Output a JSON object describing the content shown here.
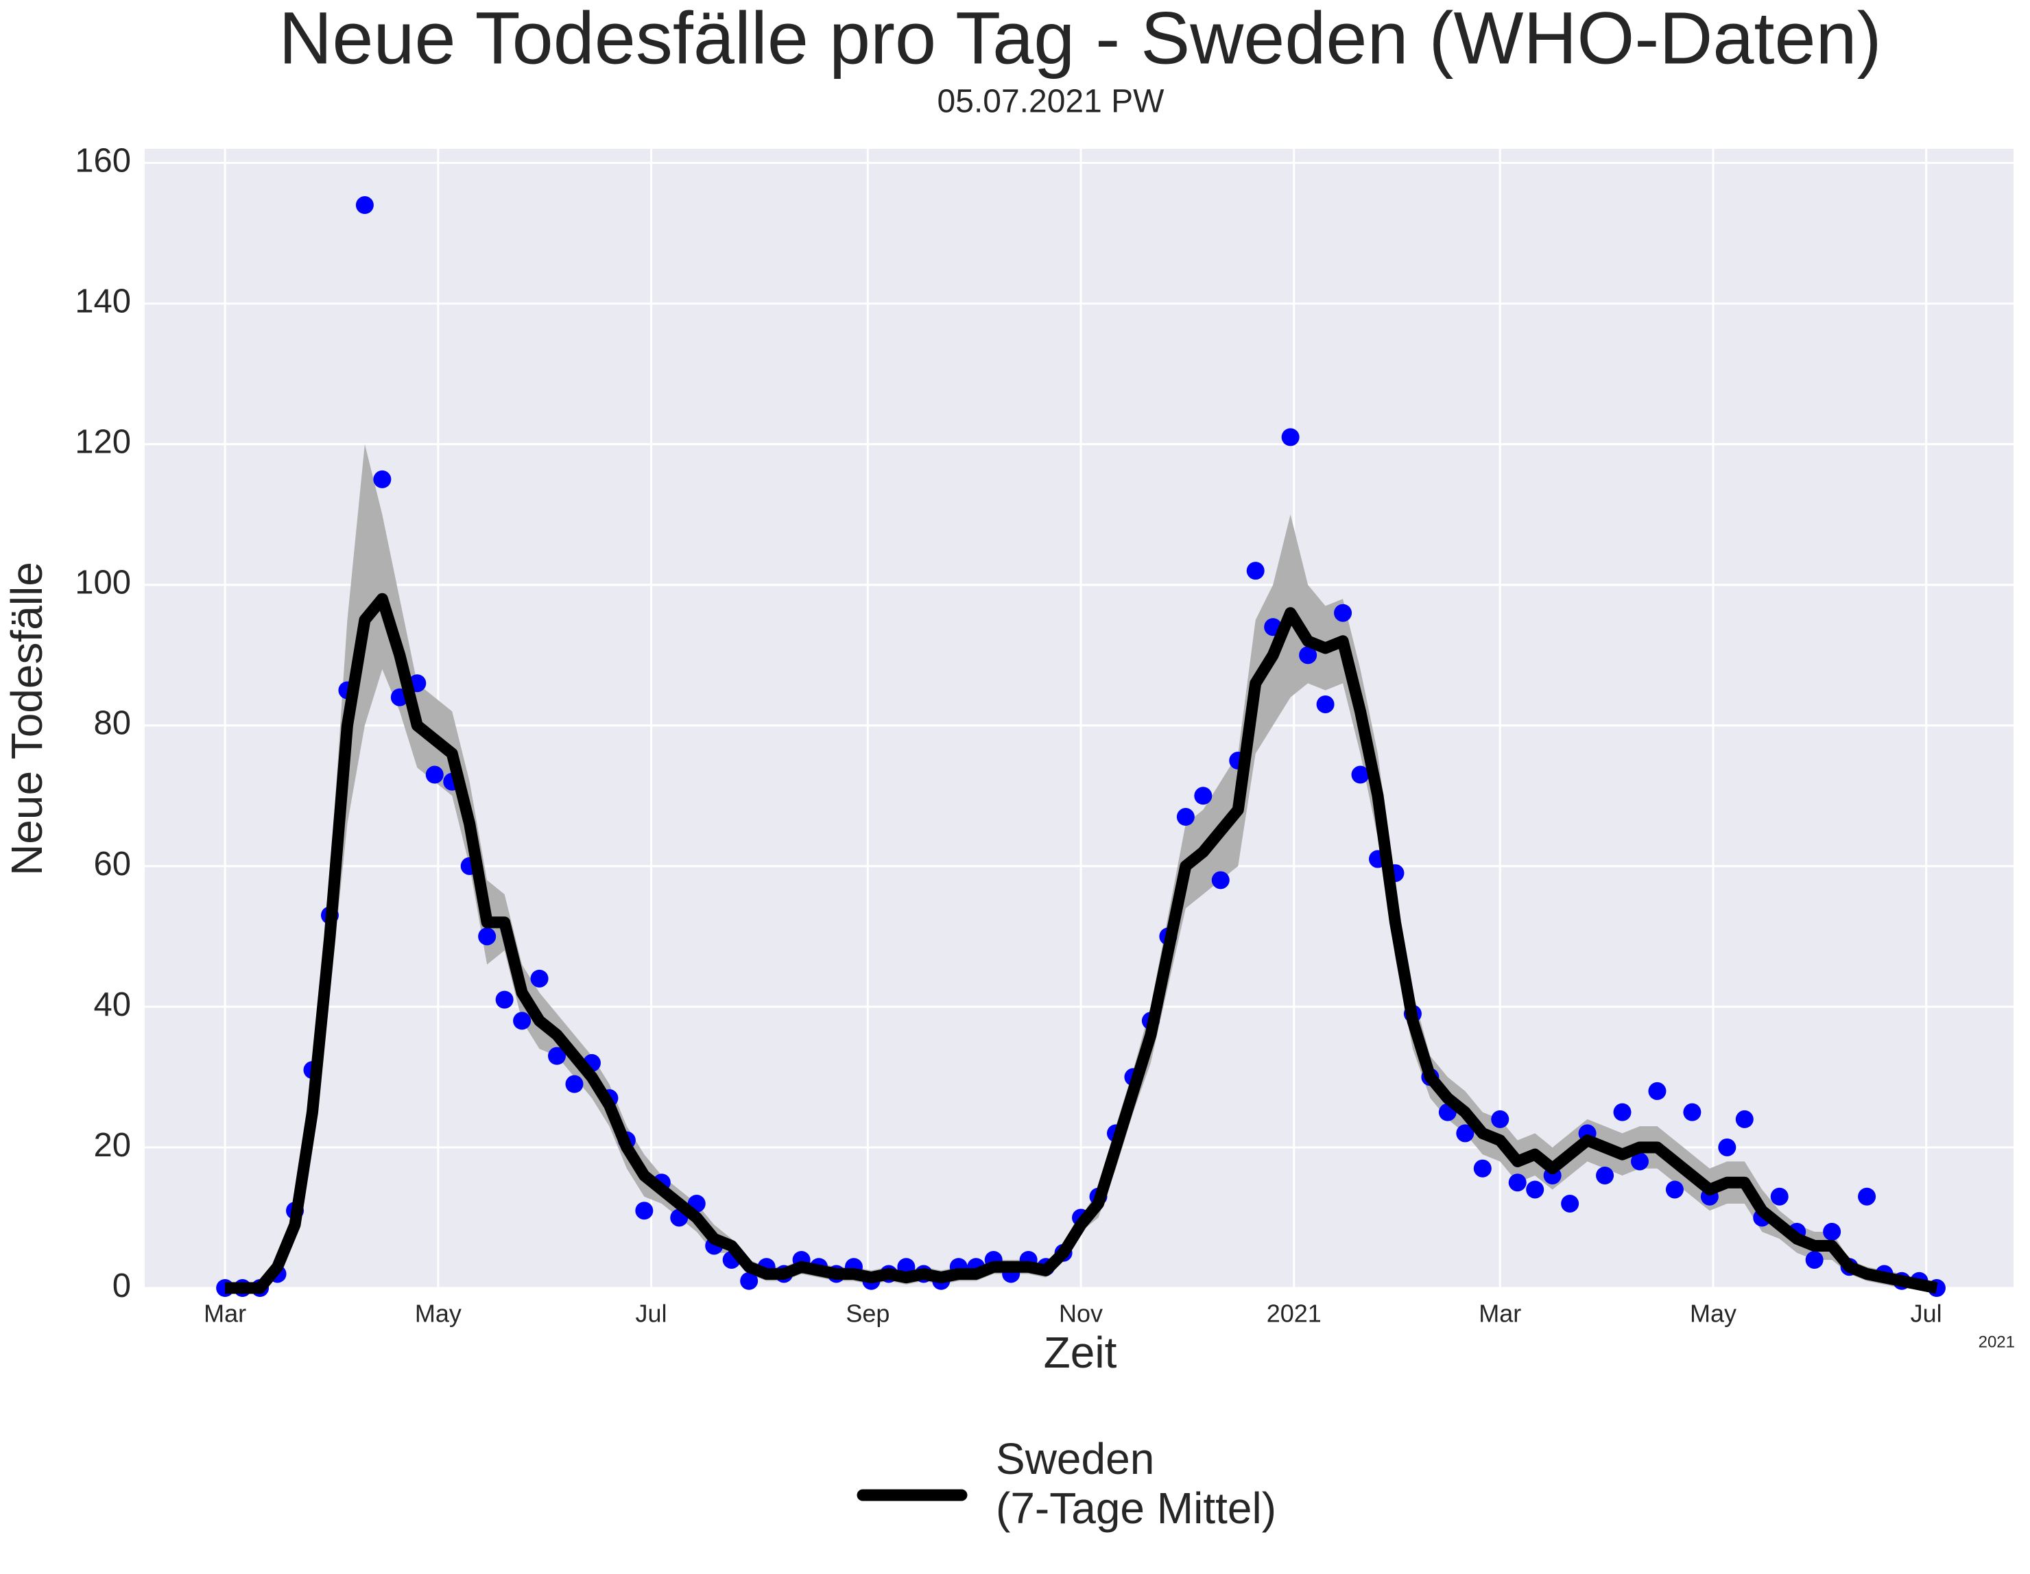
{
  "chart_data": {
    "type": "line",
    "title": "Neue Todesfälle pro Tag - Sweden (WHO-Daten)",
    "subtitle": "05.07.2021 PW",
    "xlabel": "Zeit",
    "ylabel": "Neue Todesfälle",
    "x_offset_label": "2021",
    "x": [
      "2020-03-01",
      "2020-03-06",
      "2020-03-11",
      "2020-03-16",
      "2020-03-21",
      "2020-03-26",
      "2020-03-31",
      "2020-04-05",
      "2020-04-10",
      "2020-04-15",
      "2020-04-20",
      "2020-04-25",
      "2020-04-30",
      "2020-05-05",
      "2020-05-10",
      "2020-05-15",
      "2020-05-20",
      "2020-05-25",
      "2020-05-30",
      "2020-06-04",
      "2020-06-09",
      "2020-06-14",
      "2020-06-19",
      "2020-06-24",
      "2020-06-29",
      "2020-07-04",
      "2020-07-09",
      "2020-07-14",
      "2020-07-19",
      "2020-07-24",
      "2020-07-29",
      "2020-08-03",
      "2020-08-08",
      "2020-08-13",
      "2020-08-18",
      "2020-08-23",
      "2020-08-28",
      "2020-09-02",
      "2020-09-07",
      "2020-09-12",
      "2020-09-17",
      "2020-09-22",
      "2020-09-27",
      "2020-10-02",
      "2020-10-07",
      "2020-10-12",
      "2020-10-17",
      "2020-10-22",
      "2020-10-27",
      "2020-11-01",
      "2020-11-06",
      "2020-11-11",
      "2020-11-16",
      "2020-11-21",
      "2020-11-26",
      "2020-12-01",
      "2020-12-06",
      "2020-12-11",
      "2020-12-16",
      "2020-12-21",
      "2020-12-26",
      "2020-12-31",
      "2021-01-05",
      "2021-01-10",
      "2021-01-15",
      "2021-01-20",
      "2021-01-25",
      "2021-01-30",
      "2021-02-04",
      "2021-02-09",
      "2021-02-14",
      "2021-02-19",
      "2021-02-24",
      "2021-03-01",
      "2021-03-06",
      "2021-03-11",
      "2021-03-16",
      "2021-03-21",
      "2021-03-26",
      "2021-03-31",
      "2021-04-05",
      "2021-04-10",
      "2021-04-15",
      "2021-04-20",
      "2021-04-25",
      "2021-04-30",
      "2021-05-05",
      "2021-05-10",
      "2021-05-15",
      "2021-05-20",
      "2021-05-25",
      "2021-05-30",
      "2021-06-04",
      "2021-06-09",
      "2021-06-14",
      "2021-06-19",
      "2021-06-24",
      "2021-06-29",
      "2021-07-04"
    ],
    "series": [
      {
        "name": "Sweden\n(7-Tage Mittel)",
        "color": "#000000",
        "values": [
          0,
          0,
          0,
          3,
          9,
          25,
          50,
          80,
          95,
          98,
          90,
          80,
          78,
          76,
          66,
          52,
          52,
          42,
          38,
          36,
          33,
          30,
          26,
          20,
          16,
          14,
          12,
          10,
          7,
          6,
          3,
          2,
          2,
          3,
          2.5,
          2,
          2,
          1.5,
          2,
          1.5,
          2,
          1.5,
          2,
          2,
          3,
          3,
          3,
          2.5,
          5,
          9,
          12,
          20,
          28,
          36,
          48,
          60,
          62,
          65,
          68,
          86,
          90,
          96,
          92,
          91,
          92,
          82,
          70,
          52,
          38,
          30,
          27,
          25,
          22,
          21,
          18,
          19,
          17,
          19,
          21,
          20,
          19,
          20,
          20,
          18,
          16,
          14,
          15,
          15,
          11,
          9,
          7,
          6,
          6,
          3,
          2,
          1.5,
          1,
          0.5,
          0
        ]
      }
    ],
    "points": {
      "color": "#0000ff",
      "values": [
        0,
        0,
        0,
        2,
        11,
        31,
        53,
        85,
        154,
        115,
        84,
        86,
        73,
        72,
        60,
        50,
        41,
        38,
        44,
        33,
        29,
        32,
        27,
        21,
        11,
        15,
        10,
        12,
        6,
        4,
        1,
        3,
        2,
        4,
        3,
        2,
        3,
        1,
        2,
        3,
        2,
        1,
        3,
        3,
        4,
        2,
        4,
        3,
        5,
        10,
        13,
        22,
        30,
        38,
        50,
        67,
        70,
        58,
        75,
        102,
        94,
        121,
        90,
        83,
        96,
        73,
        61,
        59,
        39,
        30,
        25,
        22,
        17,
        24,
        15,
        14,
        16,
        12,
        22,
        16,
        25,
        18,
        28,
        14,
        25,
        13,
        20,
        24,
        10,
        13,
        8,
        4,
        8,
        3,
        13,
        2,
        1,
        1,
        0
      ]
    },
    "band": {
      "color": "#b0b0b0",
      "high": [
        0,
        0,
        0,
        4,
        11,
        29,
        58,
        95,
        120,
        110,
        98,
        86,
        84,
        82,
        72,
        58,
        56,
        46,
        42,
        39,
        36,
        33,
        29,
        23,
        19,
        16,
        14,
        12,
        9,
        7,
        4,
        3,
        3,
        4,
        3.5,
        3,
        3,
        2.5,
        3,
        2.5,
        3,
        2.5,
        3,
        3,
        4,
        4,
        4,
        3.5,
        6,
        10,
        14,
        23,
        31,
        40,
        53,
        66,
        68,
        72,
        76,
        95,
        100,
        110,
        100,
        97,
        98,
        88,
        76,
        57,
        42,
        33,
        30,
        28,
        25,
        24,
        21,
        22,
        20,
        22,
        24,
        23,
        22,
        23,
        23,
        21,
        19,
        17,
        18,
        18,
        14,
        11,
        9,
        8,
        8,
        4,
        3,
        2.5,
        2,
        1,
        0.5
      ],
      "low": [
        0,
        0,
        0,
        2,
        7,
        21,
        42,
        66,
        80,
        88,
        82,
        74,
        72,
        70,
        60,
        46,
        48,
        38,
        34,
        33,
        30,
        27,
        23,
        17,
        13,
        12,
        10,
        8,
        5,
        5,
        2,
        1,
        1,
        2,
        1.5,
        1,
        1,
        0.5,
        1,
        0.5,
        1,
        0.5,
        1,
        1,
        2,
        2,
        2,
        1.5,
        4,
        8,
        10,
        17,
        25,
        32,
        43,
        54,
        56,
        58,
        60,
        76,
        80,
        84,
        86,
        85,
        86,
        76,
        64,
        47,
        34,
        27,
        24,
        22,
        19,
        18,
        15,
        16,
        14,
        16,
        18,
        17,
        16,
        17,
        17,
        15,
        13,
        11,
        12,
        12,
        8,
        7,
        5,
        4,
        4,
        2,
        1,
        0.5,
        0,
        0,
        0
      ]
    },
    "xlim": [
      "2020-02-07",
      "2021-07-26"
    ],
    "xticks": [
      {
        "value": "2020-03-01",
        "label": "Mar"
      },
      {
        "value": "2020-05-01",
        "label": "May"
      },
      {
        "value": "2020-07-01",
        "label": "Jul"
      },
      {
        "value": "2020-09-01",
        "label": "Sep"
      },
      {
        "value": "2020-11-01",
        "label": "Nov"
      },
      {
        "value": "2021-01-01",
        "label": "2021"
      },
      {
        "value": "2021-03-01",
        "label": "Mar"
      },
      {
        "value": "2021-05-01",
        "label": "May"
      },
      {
        "value": "2021-07-01",
        "label": "Jul"
      }
    ],
    "ylim": [
      0,
      162
    ],
    "yticks": [
      0,
      20,
      40,
      60,
      80,
      100,
      120,
      140,
      160
    ],
    "grid": true,
    "legend": "lower center"
  }
}
